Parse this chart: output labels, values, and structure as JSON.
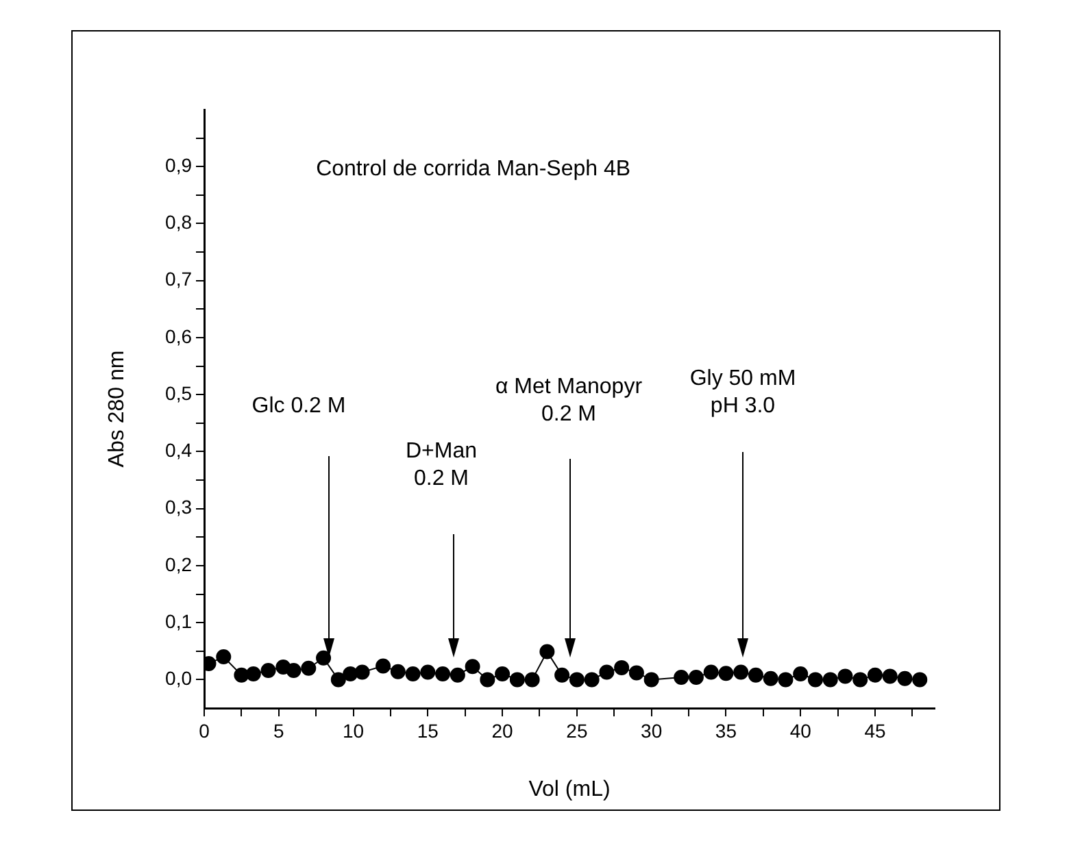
{
  "chart_data": {
    "type": "line",
    "title": "Control de corrida Man-Seph 4B",
    "xlabel": "Vol (mL)",
    "ylabel": "Abs 280 nm",
    "x": [
      0.3,
      1.3,
      2.5,
      3.3,
      4.3,
      5.3,
      6,
      7,
      8,
      9,
      9.8,
      10.6,
      12,
      13,
      14,
      15,
      16,
      17,
      18,
      19,
      20,
      21,
      22,
      23,
      24,
      25,
      26,
      27,
      28,
      29,
      30,
      32,
      33,
      34,
      35,
      36,
      37,
      38,
      39,
      40,
      41,
      42,
      43,
      44,
      45,
      46,
      47,
      48
    ],
    "series": [
      {
        "color": "#000000",
        "values": [
          0.028,
          0.04,
          0.008,
          0.01,
          0.016,
          0.022,
          0.016,
          0.02,
          0.038,
          0,
          0.01,
          0.013,
          0.024,
          0.014,
          0.01,
          0.013,
          0.01,
          0.008,
          0.023,
          0,
          0.01,
          0,
          0,
          0.049,
          0.008,
          0,
          0,
          0.013,
          0.021,
          0.012,
          0,
          0.004,
          0.004,
          0.013,
          0.011,
          0.013,
          0.008,
          0.002,
          0,
          0.01,
          0,
          0,
          0.006,
          0,
          0.008,
          0.006,
          0.002,
          0
        ]
      }
    ],
    "xlim": [
      0,
      49
    ],
    "ylim": [
      -0.05,
      1
    ],
    "xticks": [
      0,
      {
        "value": 2.5,
        "label": null
      },
      5,
      {
        "value": 7.5,
        "label": null
      },
      10,
      {
        "value": 12.5,
        "label": null
      },
      15,
      {
        "value": 17.5,
        "label": null
      },
      20,
      {
        "value": 22.5,
        "label": null
      },
      25,
      {
        "value": 27.5,
        "label": null
      },
      30,
      {
        "value": 32.5,
        "label": null
      },
      35,
      {
        "value": 37.5,
        "label": null
      },
      40,
      {
        "value": 42.5,
        "label": null
      },
      45,
      {
        "value": 47.5,
        "label": null
      }
    ],
    "yticks": [
      {
        "value": 0,
        "label": "0,0"
      },
      {
        "value": 0.05,
        "label": null
      },
      {
        "value": 0.1,
        "label": "0,1"
      },
      {
        "value": 0.15,
        "label": null
      },
      {
        "value": 0.2,
        "label": "0,2"
      },
      {
        "value": 0.25,
        "label": null
      },
      {
        "value": 0.3,
        "label": "0,3"
      },
      {
        "value": 0.35,
        "label": null
      },
      {
        "value": 0.4,
        "label": "0,4"
      },
      {
        "value": 0.45,
        "label": null
      },
      {
        "value": 0.5,
        "label": "0,5"
      },
      {
        "value": 0.55,
        "label": null
      },
      {
        "value": 0.6,
        "label": "0,6"
      },
      {
        "value": 0.65,
        "label": null
      },
      {
        "value": 0.7,
        "label": "0,7"
      },
      {
        "value": 0.75,
        "label": null
      },
      {
        "value": 0.8,
        "label": "0,8"
      },
      {
        "value": 0.85,
        "label": null
      },
      {
        "value": 0.9,
        "label": "0,9"
      },
      {
        "value": 0.95,
        "label": null
      }
    ],
    "annotations": [
      "Glc 0.2 M",
      "D+Man\n0.2 M",
      "α Met Manopyr\n0.2 M",
      "Gly 50 mM\npH 3.0"
    ],
    "grid": false,
    "legend": false,
    "marker": "circle",
    "line_style": "solid"
  }
}
